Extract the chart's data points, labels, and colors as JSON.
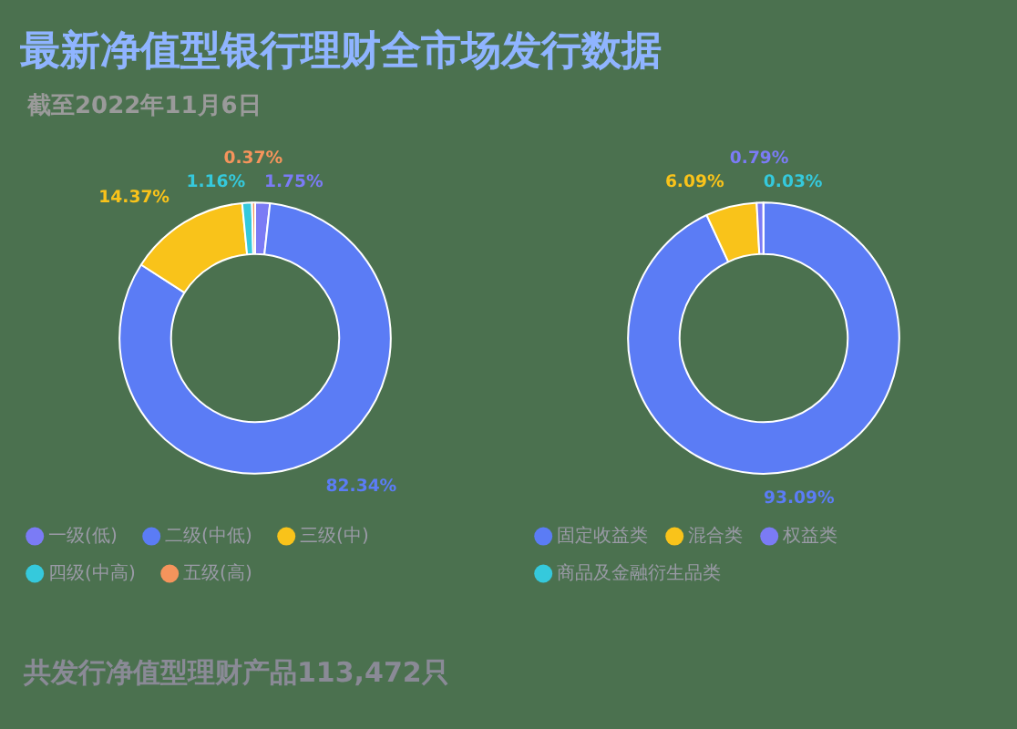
{
  "chart_data": [
    {
      "type": "donut",
      "title": "最新净值型银行理财全市场发行数据",
      "subtitle": "截至2022年11月6日",
      "annotations": [
        "共发行净值型理财产品113,472只"
      ],
      "legend": "bottom",
      "categories": [
        "一级(低)",
        "二级(中低)",
        "三级(中)",
        "四级(中高)",
        "五级(高)"
      ],
      "values": [
        1.75,
        82.34,
        14.37,
        1.16,
        0.37
      ],
      "value_labels": [
        "1.75%",
        "82.34%",
        "14.37%",
        "1.16%",
        "0.37%"
      ],
      "colors": [
        "#7b7bf5",
        "#5b7cf5",
        "#f9c31a",
        "#35c9dc",
        "#f5945c"
      ]
    },
    {
      "type": "donut",
      "legend": "bottom",
      "categories": [
        "固定收益类",
        "混合类",
        "权益类",
        "商品及金融衍生品类"
      ],
      "values": [
        93.09,
        6.09,
        0.79,
        0.03
      ],
      "value_labels": [
        "93.09%",
        "6.09%",
        "0.79%",
        "0.03%"
      ],
      "colors": [
        "#5b7cf5",
        "#f9c31a",
        "#7b7bf5",
        "#35c9dc"
      ]
    }
  ]
}
